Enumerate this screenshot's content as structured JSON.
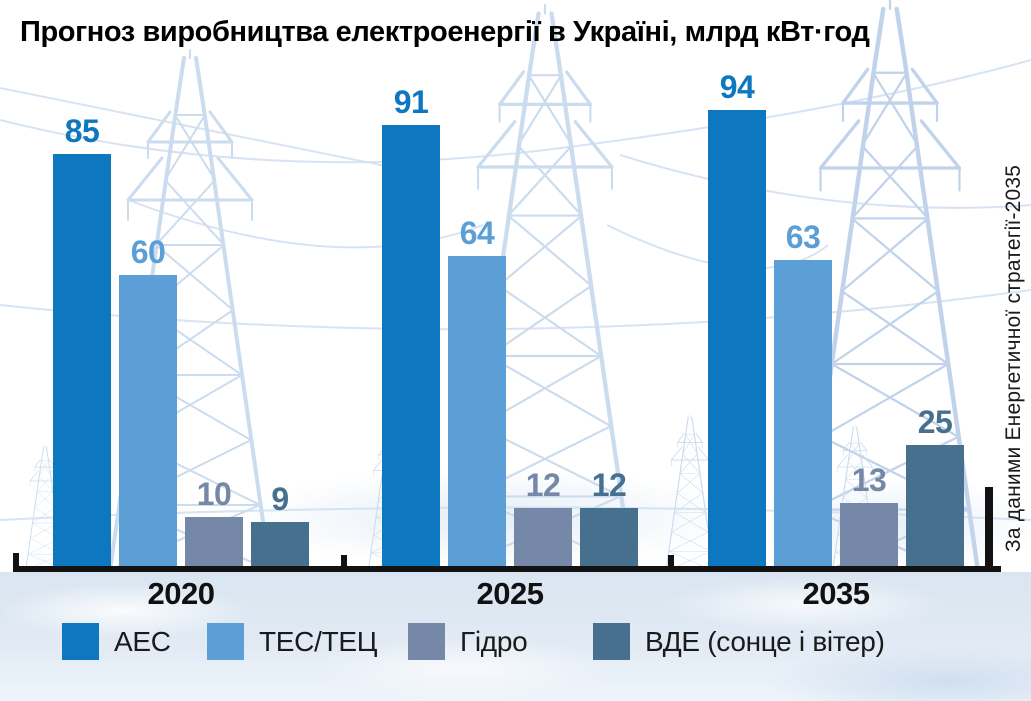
{
  "title": "Прогноз виробництва електроенергії в Україні, млрд кВт·год",
  "source_note": "За даними Енергетичної стратегії-2035",
  "chart_data": {
    "type": "bar",
    "title": "Прогноз виробництва електроенергії в Україні, млрд кВт·год",
    "unit": "млрд кВт·год",
    "categories": [
      "2020",
      "2025",
      "2035"
    ],
    "series": [
      {
        "name": "АЕС",
        "color": "#0d78bf",
        "values": [
          85,
          91,
          94
        ]
      },
      {
        "name": "ТЕС/ТЕЦ",
        "color": "#5c9fd6",
        "values": [
          60,
          64,
          63
        ]
      },
      {
        "name": "Гідро",
        "color": "#7588a7",
        "values": [
          10,
          12,
          13
        ]
      },
      {
        "name": "ВДЕ (сонце і вітер)",
        "color": "#47708f",
        "values": [
          9,
          12,
          25
        ]
      }
    ],
    "value_labels_shown": true,
    "legend_position": "bottom",
    "ylim": [
      0,
      100
    ],
    "grid": false
  },
  "colors": {
    "background": "#ffffff",
    "axis": "#121212",
    "pylon_illustration": "#cbdcef",
    "bottom_band": "#dde8f2",
    "title_text": "#000000",
    "year_label_text": "#111111",
    "legend_text": "#1a1a1a",
    "source_text": "#1a1a1a"
  }
}
